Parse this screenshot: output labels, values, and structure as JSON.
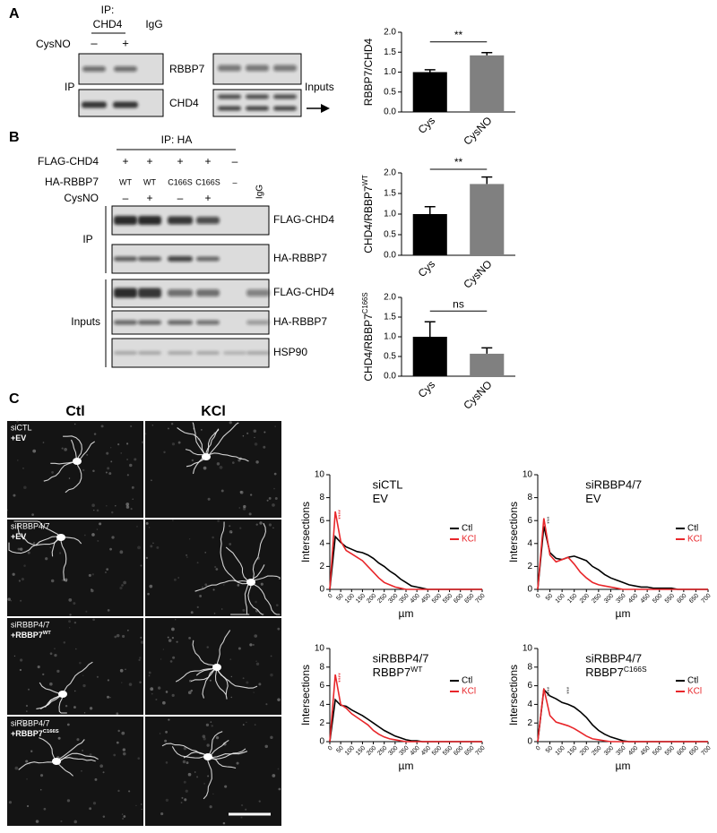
{
  "panel_a": {
    "label": "A",
    "ip_label": "IP:",
    "ip_target": "CHD4",
    "igg": "IgG",
    "treatment": "CysNO",
    "lanes": [
      "–",
      "+"
    ],
    "side_ip": "IP",
    "blots": [
      "RBBP7",
      "CHD4"
    ],
    "side_inputs": "Inputs"
  },
  "panel_b": {
    "label": "B",
    "ip_header": "IP: HA",
    "rows": [
      {
        "name": "FLAG-CHD4",
        "lanes": [
          "+",
          "+",
          "+",
          "+",
          "–"
        ]
      },
      {
        "name": "HA-RBBP7",
        "lanes": [
          "WT",
          "WT",
          "C166S",
          "C166S",
          "–"
        ]
      },
      {
        "name": "CysNO",
        "lanes": [
          "–",
          "+",
          "–",
          "+"
        ]
      }
    ],
    "igg": "IgG",
    "ip_blots": [
      "FLAG-CHD4",
      "HA-RBBP7"
    ],
    "input_blots": [
      "FLAG-CHD4",
      "HA-RBBP7",
      "HSP90"
    ],
    "side_ip": "IP",
    "side_inputs": "Inputs"
  },
  "panel_c": {
    "label": "C",
    "columns": [
      "Ctl",
      "KCl"
    ],
    "rows": [
      {
        "line1": "siCTL",
        "line2": "+EV"
      },
      {
        "line1": "siRBBP4/7",
        "line2": "+EV"
      },
      {
        "line1": "siRBBP4/7",
        "line2": "+RBBP7",
        "superscript": "WT"
      },
      {
        "line1": "siRBBP4/7",
        "line2": "+RBBP7",
        "superscript": "C166S"
      }
    ]
  },
  "chart_data": [
    {
      "type": "bar",
      "ylabel": "RBBP7/CHD4",
      "categories": [
        "Cys",
        "CysNO"
      ],
      "values": [
        1.0,
        1.42
      ],
      "errors": [
        0.06,
        0.07
      ],
      "colors": [
        "#000000",
        "#808080"
      ],
      "ylim": [
        0,
        2
      ],
      "yticks": [
        {
          "value": 0,
          "label": "0.0"
        },
        0.5,
        {
          "value": 1,
          "label": "1.0"
        },
        1.5,
        {
          "value": 2,
          "label": "2.0"
        }
      ],
      "significance": "**"
    },
    {
      "type": "bar",
      "ylabel": "CHD4/RBBP7",
      "ylabel_superscript": "WT",
      "categories": [
        "Cys",
        "CysNO"
      ],
      "values": [
        1.0,
        1.73
      ],
      "errors": [
        0.18,
        0.17
      ],
      "colors": [
        "#000000",
        "#808080"
      ],
      "ylim": [
        0,
        2
      ],
      "yticks": [
        {
          "value": 0,
          "label": "0.0"
        },
        0.5,
        {
          "value": 1,
          "label": "1.0"
        },
        1.5,
        {
          "value": 2,
          "label": "2.0"
        }
      ],
      "significance": "**"
    },
    {
      "type": "bar",
      "ylabel": "CHD4/RBBP7",
      "ylabel_superscript": "C166S",
      "categories": [
        "Cys",
        "CysNO"
      ],
      "values": [
        1.0,
        0.57
      ],
      "errors": [
        0.38,
        0.15
      ],
      "colors": [
        "#000000",
        "#808080"
      ],
      "ylim": [
        0,
        2
      ],
      "yticks": [
        {
          "value": 0,
          "label": "0.0"
        },
        0.5,
        {
          "value": 1,
          "label": "1.0"
        },
        1.5,
        {
          "value": 2,
          "label": "2.0"
        }
      ],
      "significance": "ns"
    },
    {
      "type": "line",
      "title": "siCTL",
      "subtitle": "EV",
      "xlabel": "µm",
      "ylabel": "Intersections",
      "x": [
        0,
        25,
        50,
        75,
        100,
        125,
        150,
        175,
        200,
        225,
        250,
        275,
        300,
        325,
        350,
        375,
        400,
        425,
        450,
        475,
        500,
        525,
        550,
        575,
        600,
        625,
        650,
        675,
        700
      ],
      "series": [
        {
          "name": "Ctl",
          "color": "#000000",
          "values": [
            0,
            4.6,
            4.1,
            3.7,
            3.5,
            3.3,
            3.2,
            3.0,
            2.7,
            2.3,
            2.0,
            1.6,
            1.3,
            0.9,
            0.6,
            0.3,
            0.2,
            0.1,
            0,
            0,
            0,
            0,
            0,
            0,
            0,
            0,
            0,
            0,
            0
          ]
        },
        {
          "name": "KCl",
          "color": "#e8262a",
          "values": [
            0,
            6.8,
            4.2,
            3.4,
            3.1,
            2.8,
            2.5,
            2.0,
            1.5,
            1.0,
            0.6,
            0.4,
            0.2,
            0.1,
            0,
            0,
            0,
            0,
            0,
            0,
            0,
            0,
            0,
            0,
            0,
            0,
            0,
            0,
            0
          ]
        }
      ],
      "annotations": [
        {
          "text": "****",
          "color": "#e8262a"
        }
      ],
      "xlim": [
        0,
        700
      ],
      "ylim": [
        0,
        10
      ],
      "xticks": [
        0,
        50,
        100,
        150,
        200,
        250,
        300,
        350,
        400,
        450,
        500,
        550,
        600,
        650,
        700
      ],
      "yticks": [
        0,
        2,
        4,
        6,
        8,
        10
      ],
      "legend": "right"
    },
    {
      "type": "line",
      "title": "siRBBP4/7",
      "subtitle": "EV",
      "xlabel": "µm",
      "ylabel": "Intersections",
      "x": [
        0,
        25,
        50,
        75,
        100,
        125,
        150,
        175,
        200,
        225,
        250,
        275,
        300,
        325,
        350,
        375,
        400,
        425,
        450,
        475,
        500,
        525,
        550,
        575,
        600,
        625,
        650,
        675,
        700
      ],
      "series": [
        {
          "name": "Ctl",
          "color": "#000000",
          "values": [
            0,
            5.5,
            3.2,
            2.7,
            2.6,
            2.8,
            2.9,
            2.7,
            2.5,
            2.0,
            1.7,
            1.3,
            1.0,
            0.8,
            0.6,
            0.4,
            0.3,
            0.2,
            0.2,
            0.1,
            0.1,
            0.1,
            0.1,
            0,
            0,
            0,
            0,
            0,
            0
          ]
        },
        {
          "name": "KCl",
          "color": "#e8262a",
          "values": [
            0,
            6.2,
            3.0,
            2.4,
            2.6,
            2.8,
            2.2,
            1.5,
            1.0,
            0.6,
            0.4,
            0.3,
            0.2,
            0.1,
            0,
            0,
            0,
            0,
            0,
            0,
            0,
            0,
            0,
            0,
            0,
            0,
            0,
            0,
            0
          ]
        }
      ],
      "annotations": [
        {
          "text": "***",
          "color": "#444444"
        }
      ],
      "xlim": [
        0,
        700
      ],
      "ylim": [
        0,
        10
      ],
      "xticks": [
        0,
        50,
        100,
        150,
        200,
        250,
        300,
        350,
        400,
        450,
        500,
        550,
        600,
        650,
        700
      ],
      "yticks": [
        0,
        2,
        4,
        6,
        8,
        10
      ],
      "legend": "right"
    },
    {
      "type": "line",
      "title": "siRBBP4/7",
      "subtitle": "RBBP7",
      "subtitle_superscript": "WT",
      "xlabel": "µm",
      "ylabel": "Intersections",
      "x": [
        0,
        25,
        50,
        75,
        100,
        125,
        150,
        175,
        200,
        225,
        250,
        275,
        300,
        325,
        350,
        375,
        400,
        425,
        450,
        475,
        500,
        525,
        550,
        575,
        600,
        625,
        650,
        675,
        700
      ],
      "series": [
        {
          "name": "Ctl",
          "color": "#000000",
          "values": [
            0,
            4.5,
            3.9,
            3.8,
            3.4,
            3.1,
            2.8,
            2.4,
            2.0,
            1.6,
            1.2,
            0.9,
            0.6,
            0.4,
            0.2,
            0.1,
            0.1,
            0,
            0,
            0,
            0,
            0,
            0,
            0,
            0,
            0,
            0,
            0,
            0
          ]
        },
        {
          "name": "KCl",
          "color": "#e8262a",
          "values": [
            0,
            7.2,
            4.0,
            3.6,
            3.0,
            2.6,
            2.2,
            1.8,
            1.2,
            0.8,
            0.5,
            0.3,
            0.2,
            0.1,
            0,
            0,
            0,
            0,
            0,
            0,
            0,
            0,
            0,
            0,
            0,
            0,
            0,
            0,
            0
          ]
        }
      ],
      "annotations": [
        {
          "text": "****",
          "color": "#e8262a"
        }
      ],
      "xlim": [
        0,
        700
      ],
      "ylim": [
        0,
        10
      ],
      "xticks": [
        0,
        50,
        100,
        150,
        200,
        250,
        300,
        350,
        400,
        450,
        500,
        550,
        600,
        650,
        700
      ],
      "yticks": [
        0,
        2,
        4,
        6,
        8,
        10
      ],
      "legend": "right"
    },
    {
      "type": "line",
      "title": "siRBBP4/7",
      "subtitle": "RBBP7",
      "subtitle_superscript": "C166S",
      "xlabel": "µm",
      "ylabel": "Intersections",
      "x": [
        0,
        25,
        50,
        75,
        100,
        125,
        150,
        175,
        200,
        225,
        250,
        275,
        300,
        325,
        350,
        375,
        400,
        425,
        450,
        475,
        500,
        525,
        550,
        575,
        600,
        625,
        650,
        675,
        700
      ],
      "series": [
        {
          "name": "Ctl",
          "color": "#000000",
          "values": [
            0,
            5.6,
            4.9,
            4.6,
            4.2,
            4.0,
            3.7,
            3.2,
            2.6,
            1.8,
            1.2,
            0.8,
            0.5,
            0.3,
            0.1,
            0,
            0,
            0,
            0,
            0,
            0,
            0,
            0,
            0,
            0,
            0,
            0,
            0,
            0
          ]
        },
        {
          "name": "KCl",
          "color": "#e8262a",
          "values": [
            0,
            5.7,
            2.8,
            2.1,
            1.9,
            1.7,
            1.4,
            1.0,
            0.6,
            0.3,
            0.2,
            0.1,
            0,
            0,
            0,
            0,
            0,
            0,
            0,
            0,
            0,
            0,
            0,
            0,
            0,
            0,
            0,
            0,
            0
          ]
        }
      ],
      "annotations": [
        {
          "text": "****",
          "color": "#444444"
        },
        {
          "text": "***",
          "color": "#444444"
        }
      ],
      "xlim": [
        0,
        700
      ],
      "ylim": [
        0,
        10
      ],
      "xticks": [
        0,
        50,
        100,
        150,
        200,
        250,
        300,
        350,
        400,
        450,
        500,
        550,
        600,
        650,
        700
      ],
      "yticks": [
        0,
        2,
        4,
        6,
        8,
        10
      ],
      "legend": "right"
    }
  ]
}
